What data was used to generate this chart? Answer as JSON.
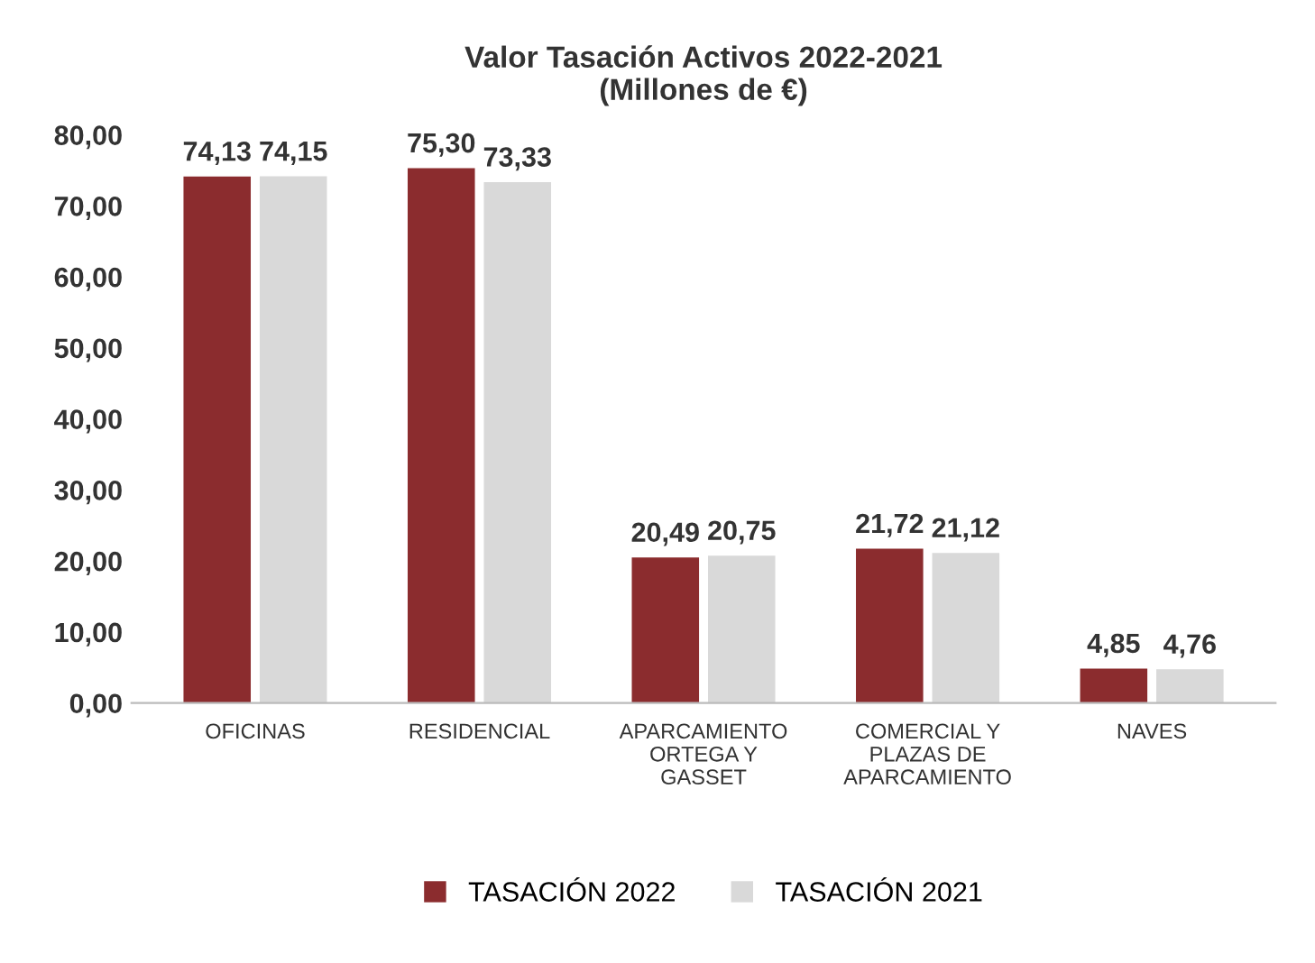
{
  "chart_data": {
    "type": "bar",
    "title": "Valor Tasación Activos 2022-2021\n(Millones de €)",
    "categories": [
      "OFICINAS",
      "RESIDENCIAL",
      "APARCAMIENTO\nORTEGA Y\nGASSET",
      "COMERCIAL Y\nPLAZAS DE\nAPARCAMIENTO",
      "NAVES"
    ],
    "series": [
      {
        "name": "TASACIÓN 2022",
        "color": "#8b2c2e",
        "values": [
          74.13,
          75.3,
          20.49,
          21.72,
          4.85
        ],
        "value_labels": [
          "74,13",
          "75,30",
          "20,49",
          "21,72",
          "4,85"
        ]
      },
      {
        "name": "TASACIÓN 2021",
        "color": "#d9d9d9",
        "values": [
          74.15,
          73.33,
          20.75,
          21.12,
          4.76
        ],
        "value_labels": [
          "74,15",
          "73,33",
          "20,75",
          "21,12",
          "4,76"
        ]
      }
    ],
    "ylim": [
      0,
      80
    ],
    "yticks": [
      {
        "value": 0,
        "label": "0,00"
      },
      {
        "value": 10,
        "label": "10,00"
      },
      {
        "value": 20,
        "label": "20,00"
      },
      {
        "value": 30,
        "label": "30,00"
      },
      {
        "value": 40,
        "label": "40,00"
      },
      {
        "value": 50,
        "label": "50,00"
      },
      {
        "value": 60,
        "label": "60,00"
      },
      {
        "value": 70,
        "label": "70,00"
      },
      {
        "value": 80,
        "label": "80,00"
      }
    ],
    "grid": false,
    "legend": "bottom"
  }
}
